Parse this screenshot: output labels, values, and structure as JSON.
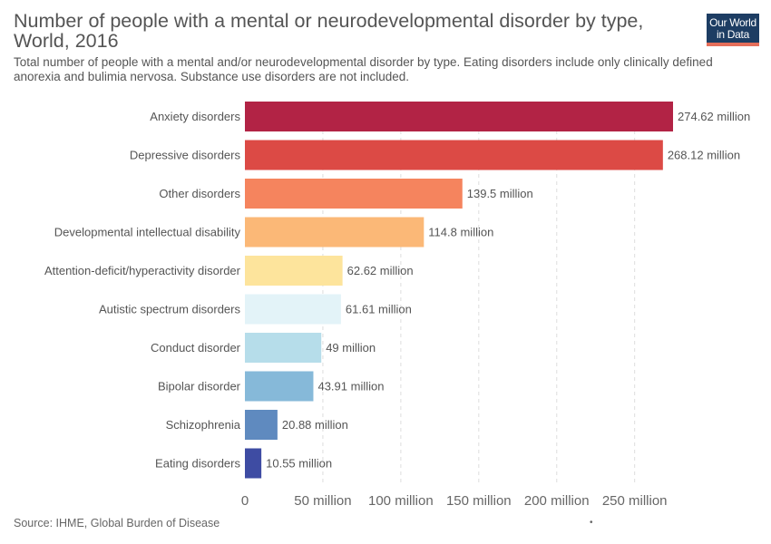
{
  "header": {
    "title": "Number of people with a mental or neurodevelopmental disorder by type, World, 2016",
    "subtitle": "Total number of people with a mental and/or neurodevelopmental disorder by type. Eating disorders include only clinically defined anorexia and bulimia nervosa. Substance use disorders are not included.",
    "logo_line1": "Our World",
    "logo_line2": "in Data"
  },
  "footer": {
    "source": "Source: IHME, Global Burden of Disease",
    "dot": "•"
  },
  "chart_data": {
    "type": "bar",
    "orientation": "horizontal",
    "categories": [
      "Anxiety disorders",
      "Depressive disorders",
      "Other disorders",
      "Developmental intellectual disability",
      "Attention-deficit/hyperactivity disorder",
      "Autistic spectrum disorders",
      "Conduct disorder",
      "Bipolar disorder",
      "Schizophrenia",
      "Eating disorders"
    ],
    "values": [
      274.62,
      268.12,
      139.5,
      114.8,
      62.62,
      61.61,
      49,
      43.91,
      20.88,
      10.55
    ],
    "value_labels": [
      "274.62 million",
      "268.12 million",
      "139.5 million",
      "114.8 million",
      "62.62 million",
      "61.61 million",
      "49 million",
      "43.91 million",
      "20.88 million",
      "10.55 million"
    ],
    "colors": [
      "#b22345",
      "#dc4a45",
      "#f5845e",
      "#fbb877",
      "#fde49c",
      "#e3f3f8",
      "#b6ddea",
      "#86b9d9",
      "#5f8abf",
      "#3e4ca3"
    ],
    "xlim": [
      0,
      274.62
    ],
    "xticks": [
      0,
      50,
      100,
      150,
      200,
      250
    ],
    "xtick_labels": [
      "0",
      "50 million",
      "100 million",
      "150 million",
      "200 million",
      "250 million"
    ],
    "grid": "vertical dashed"
  }
}
